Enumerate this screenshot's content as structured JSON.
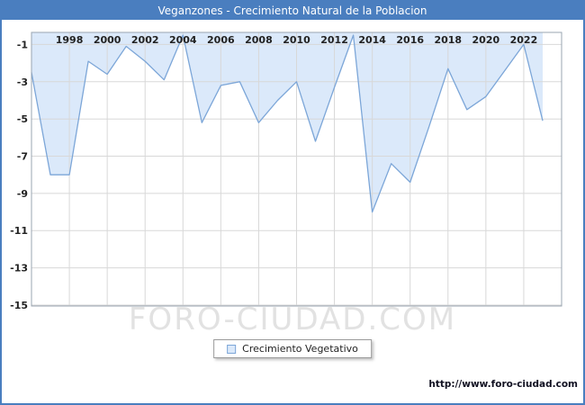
{
  "header": {
    "title": "Veganzones - Crecimiento Natural de la Poblacion"
  },
  "footer": {
    "watermark": "FORO-CIUDAD.COM",
    "url": "http://www.foro-ciudad.com"
  },
  "chart_data": {
    "type": "area",
    "title": "Veganzones - Crecimiento Natural de la Poblacion",
    "legend_label": "Crecimiento Vegetativo",
    "legend_position": "bottom-center",
    "grid": true,
    "x": [
      1996,
      1997,
      1998,
      1999,
      2000,
      2001,
      2002,
      2003,
      2004,
      2005,
      2006,
      2007,
      2008,
      2009,
      2010,
      2011,
      2012,
      2013,
      2014,
      2015,
      2016,
      2017,
      2018,
      2019,
      2020,
      2021,
      2022,
      2023
    ],
    "values": [
      -2.5,
      -8,
      -8,
      -1.9,
      -2.6,
      -1.1,
      -1.9,
      -2.9,
      -0.5,
      -5.2,
      -3.2,
      -3,
      -5.2,
      -4,
      -3,
      -6.2,
      -3.3,
      -0.5,
      -10,
      -7.4,
      -8.4,
      -5.4,
      -2.3,
      -4.5,
      -3.8,
      -2.4,
      -1,
      -5.1
    ],
    "x_ticks": [
      1998,
      2000,
      2002,
      2004,
      2006,
      2008,
      2010,
      2012,
      2014,
      2016,
      2018,
      2020,
      2022
    ],
    "y_ticks": [
      -1,
      -3,
      -5,
      -7,
      -9,
      -11,
      -13,
      -15
    ],
    "xlim": [
      1996,
      2024
    ],
    "ylim": [
      -15.05,
      -0.35
    ],
    "xlabel": "",
    "ylabel": "",
    "colors": {
      "fill": "#dbe9fa",
      "line": "#7ca6d8",
      "grid": "#d8d8d8",
      "axis": "#9aa5b1",
      "tick_text": "#222222",
      "title_bg": "#4a7ebf",
      "title_text": "#ffffff"
    }
  }
}
